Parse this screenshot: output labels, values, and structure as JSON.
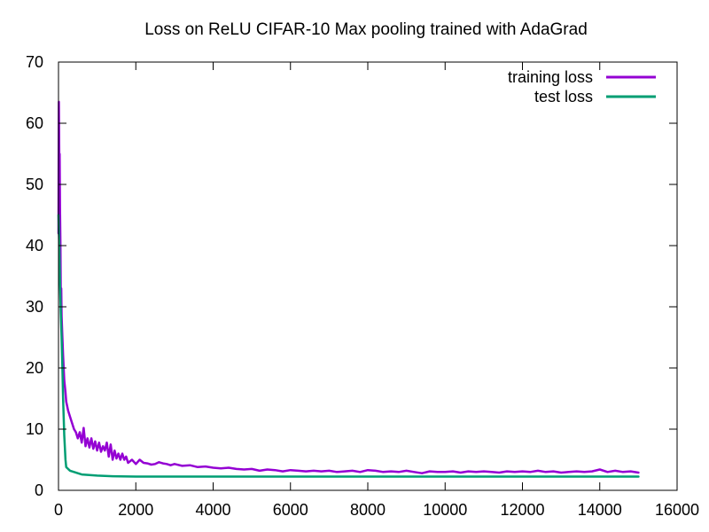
{
  "chart_data": {
    "type": "line",
    "title": "Loss on ReLU CIFAR-10 Max pooling trained with AdaGrad",
    "xlabel": "",
    "ylabel": "",
    "xlim": [
      0,
      16000
    ],
    "ylim": [
      0,
      70
    ],
    "xticks": [
      "0",
      "2000",
      "4000",
      "6000",
      "8000",
      "10000",
      "12000",
      "14000",
      "16000"
    ],
    "yticks": [
      "0",
      "10",
      "20",
      "30",
      "40",
      "50",
      "60",
      "70"
    ],
    "grid": false,
    "legend_position": "top-right",
    "series": [
      {
        "name": "training loss",
        "color": "#9400d3",
        "points": [
          [
            0,
            42
          ],
          [
            10,
            63.5
          ],
          [
            20,
            54
          ],
          [
            30,
            55
          ],
          [
            40,
            46
          ],
          [
            50,
            40
          ],
          [
            60,
            31.5
          ],
          [
            70,
            33
          ],
          [
            80,
            28.5
          ],
          [
            100,
            25
          ],
          [
            120,
            22
          ],
          [
            150,
            18
          ],
          [
            180,
            16
          ],
          [
            200,
            14.5
          ],
          [
            250,
            13
          ],
          [
            300,
            12
          ],
          [
            350,
            11
          ],
          [
            400,
            10
          ],
          [
            450,
            9.5
          ],
          [
            500,
            8.5
          ],
          [
            550,
            9.5
          ],
          [
            600,
            7.8
          ],
          [
            650,
            10.2
          ],
          [
            700,
            7.2
          ],
          [
            750,
            8.5
          ],
          [
            800,
            7
          ],
          [
            850,
            8.5
          ],
          [
            900,
            6.8
          ],
          [
            950,
            8
          ],
          [
            1000,
            6.5
          ],
          [
            1050,
            7.8
          ],
          [
            1100,
            6.3
          ],
          [
            1150,
            7.2
          ],
          [
            1200,
            6.5
          ],
          [
            1250,
            7.8
          ],
          [
            1300,
            5.5
          ],
          [
            1350,
            7.5
          ],
          [
            1400,
            5
          ],
          [
            1450,
            6.5
          ],
          [
            1500,
            5.2
          ],
          [
            1550,
            6
          ],
          [
            1600,
            5
          ],
          [
            1650,
            6
          ],
          [
            1700,
            5
          ],
          [
            1750,
            5.5
          ],
          [
            1800,
            4.5
          ],
          [
            1900,
            5
          ],
          [
            2000,
            4.3
          ],
          [
            2100,
            5
          ],
          [
            2200,
            4.5
          ],
          [
            2300,
            4.4
          ],
          [
            2400,
            4.2
          ],
          [
            2500,
            4.3
          ],
          [
            2600,
            4.6
          ],
          [
            2700,
            4.4
          ],
          [
            2800,
            4.3
          ],
          [
            2900,
            4.1
          ],
          [
            3000,
            4.3
          ],
          [
            3200,
            4
          ],
          [
            3400,
            4.1
          ],
          [
            3600,
            3.8
          ],
          [
            3800,
            3.9
          ],
          [
            4000,
            3.7
          ],
          [
            4200,
            3.6
          ],
          [
            4400,
            3.7
          ],
          [
            4600,
            3.5
          ],
          [
            4800,
            3.4
          ],
          [
            5000,
            3.5
          ],
          [
            5200,
            3.2
          ],
          [
            5400,
            3.4
          ],
          [
            5600,
            3.3
          ],
          [
            5800,
            3.1
          ],
          [
            6000,
            3.3
          ],
          [
            6200,
            3.2
          ],
          [
            6400,
            3.1
          ],
          [
            6600,
            3.2
          ],
          [
            6800,
            3.1
          ],
          [
            7000,
            3.2
          ],
          [
            7200,
            3
          ],
          [
            7400,
            3.1
          ],
          [
            7600,
            3.2
          ],
          [
            7800,
            3
          ],
          [
            8000,
            3.3
          ],
          [
            8200,
            3.2
          ],
          [
            8400,
            3
          ],
          [
            8600,
            3.1
          ],
          [
            8800,
            3
          ],
          [
            9000,
            3.2
          ],
          [
            9200,
            3
          ],
          [
            9400,
            2.8
          ],
          [
            9600,
            3.1
          ],
          [
            9800,
            3
          ],
          [
            10000,
            3
          ],
          [
            10200,
            3.1
          ],
          [
            10400,
            2.9
          ],
          [
            10600,
            3.1
          ],
          [
            10800,
            3
          ],
          [
            11000,
            3.1
          ],
          [
            11200,
            3
          ],
          [
            11400,
            2.9
          ],
          [
            11600,
            3.1
          ],
          [
            11800,
            3
          ],
          [
            12000,
            3.1
          ],
          [
            12200,
            3
          ],
          [
            12400,
            3.2
          ],
          [
            12600,
            3
          ],
          [
            12800,
            3.1
          ],
          [
            13000,
            2.9
          ],
          [
            13200,
            3
          ],
          [
            13400,
            3.1
          ],
          [
            13600,
            3
          ],
          [
            13800,
            3.1
          ],
          [
            14000,
            3.4
          ],
          [
            14200,
            3
          ],
          [
            14400,
            3.2
          ],
          [
            14600,
            3
          ],
          [
            14800,
            3.1
          ],
          [
            15000,
            2.9
          ]
        ]
      },
      {
        "name": "test loss",
        "color": "#009e73",
        "points": [
          [
            0,
            45
          ],
          [
            20,
            40
          ],
          [
            40,
            34
          ],
          [
            60,
            29
          ],
          [
            80,
            25
          ],
          [
            100,
            20
          ],
          [
            120,
            15
          ],
          [
            150,
            9
          ],
          [
            180,
            5
          ],
          [
            200,
            3.8
          ],
          [
            250,
            3.5
          ],
          [
            300,
            3.2
          ],
          [
            400,
            3
          ],
          [
            500,
            2.8
          ],
          [
            600,
            2.6
          ],
          [
            800,
            2.5
          ],
          [
            1000,
            2.4
          ],
          [
            1200,
            2.35
          ],
          [
            1400,
            2.3
          ],
          [
            2000,
            2.25
          ],
          [
            4000,
            2.25
          ],
          [
            8000,
            2.25
          ],
          [
            12000,
            2.25
          ],
          [
            15000,
            2.25
          ]
        ]
      }
    ]
  }
}
